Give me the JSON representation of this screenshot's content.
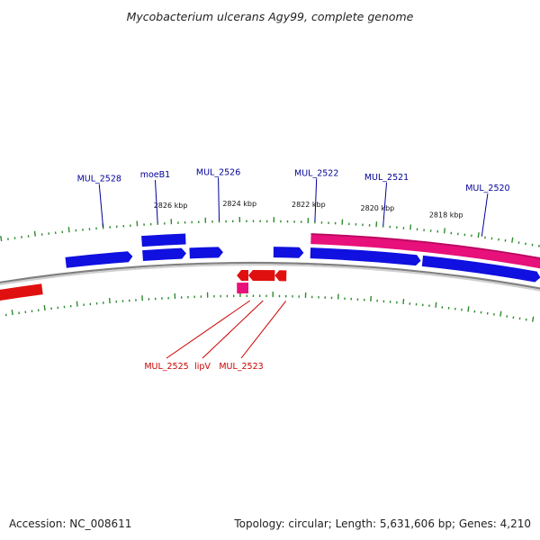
{
  "title": "Mycobacterium ulcerans Agy99, complete genome",
  "footer": {
    "accession": "Accession: NC_008611",
    "summary": "Topology: circular; Length: 5,631,606 bp; Genes: 4,210"
  },
  "colors": {
    "forward_gene": "#1010e0",
    "reverse_gene": "#e01010",
    "rna_track": "#e8107a",
    "forward_label": "#000099",
    "reverse_label": "#cc0000",
    "backbone": "#808080",
    "tick": "#2e8b2e"
  },
  "chart_data": {
    "type": "genome-map",
    "coordinate_unit": "kbp",
    "scale_labels": [
      {
        "text": "2826 kbp",
        "kbp": 2826
      },
      {
        "text": "2824 kbp",
        "kbp": 2824
      },
      {
        "text": "2822 kbp",
        "kbp": 2822
      },
      {
        "text": "2820 kbp",
        "kbp": 2820
      },
      {
        "text": "2818 kbp",
        "kbp": 2818
      }
    ],
    "forward_labels": [
      {
        "name": "MUL_2528",
        "kbp": 2828.0
      },
      {
        "name": "moeB1",
        "kbp": 2826.4
      },
      {
        "name": "MUL_2526",
        "kbp": 2824.6
      },
      {
        "name": "MUL_2522",
        "kbp": 2821.8
      },
      {
        "name": "MUL_2521",
        "kbp": 2819.8
      },
      {
        "name": "MUL_2520",
        "kbp": 2816.9
      }
    ],
    "reverse_labels": [
      {
        "name": "MUL_2525",
        "kbp": 2823.7
      },
      {
        "name": "lipV",
        "kbp": 2823.3
      },
      {
        "name": "MUL_2523",
        "kbp": 2822.6
      }
    ],
    "forward_genes_outer": [
      {
        "name": "moeB1",
        "start": 2826.9,
        "end": 2825.6
      }
    ],
    "forward_genes": [
      {
        "name": "MUL_2528",
        "start": 2829.2,
        "end": 2827.2
      },
      {
        "name": "moeB1",
        "start": 2826.9,
        "end": 2825.6
      },
      {
        "name": "MUL_2526",
        "start": 2825.5,
        "end": 2824.5
      },
      {
        "name": "MUL_2522",
        "start": 2823.0,
        "end": 2822.1
      },
      {
        "name": "MUL_2521",
        "start": 2821.9,
        "end": 2818.6
      },
      {
        "name": "MUL_2520",
        "start": 2818.55,
        "end": 2815.0
      }
    ],
    "rna_outer": [
      {
        "start": 2821.9,
        "end": 2815.0
      }
    ],
    "reverse_genes": [
      {
        "name": "MUL_2525",
        "start": 2823.75,
        "end": 2824.1
      },
      {
        "name": "lipV",
        "start": 2822.95,
        "end": 2823.75
      },
      {
        "name": "MUL_2523",
        "start": 2822.6,
        "end": 2822.95
      },
      {
        "name": "",
        "start": 2830.0,
        "end": 2831.5
      }
    ],
    "rna_inner": [
      {
        "start": 2823.75,
        "end": 2824.1
      }
    ],
    "view_range_kbp": [
      2831.2,
      2815.0
    ]
  }
}
